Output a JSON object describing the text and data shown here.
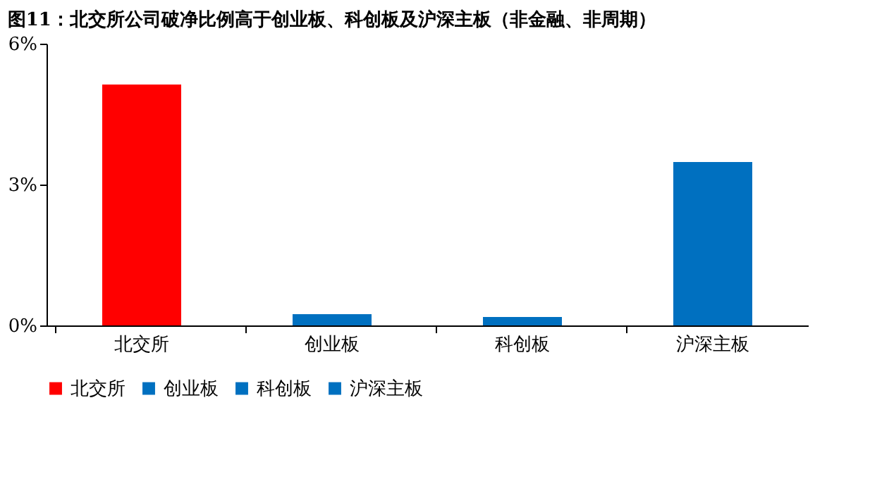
{
  "chart_data": {
    "type": "bar",
    "title": "图11：北交所公司破净比例高于创业板、科创板及沪深主板（非金融、非周期）",
    "categories": [
      "北交所",
      "创业板",
      "科创板",
      "沪深主板"
    ],
    "series": [
      {
        "name": "北交所",
        "color": "#ff0000",
        "values": [
          5.13,
          null,
          null,
          null
        ]
      },
      {
        "name": "创业板",
        "color": "#0070c0",
        "values": [
          null,
          0.24,
          null,
          null
        ]
      },
      {
        "name": "科创板",
        "color": "#0070c0",
        "values": [
          null,
          null,
          0.18,
          null
        ]
      },
      {
        "name": "沪深主板",
        "color": "#0070c0",
        "values": [
          null,
          null,
          null,
          3.48
        ]
      }
    ],
    "ylim": [
      0,
      6
    ],
    "yticks": [
      {
        "value": 0,
        "label": "0%"
      },
      {
        "value": 3,
        "label": "3%"
      },
      {
        "value": 6,
        "label": "6%"
      }
    ],
    "grid": false,
    "legend": "bottom"
  }
}
